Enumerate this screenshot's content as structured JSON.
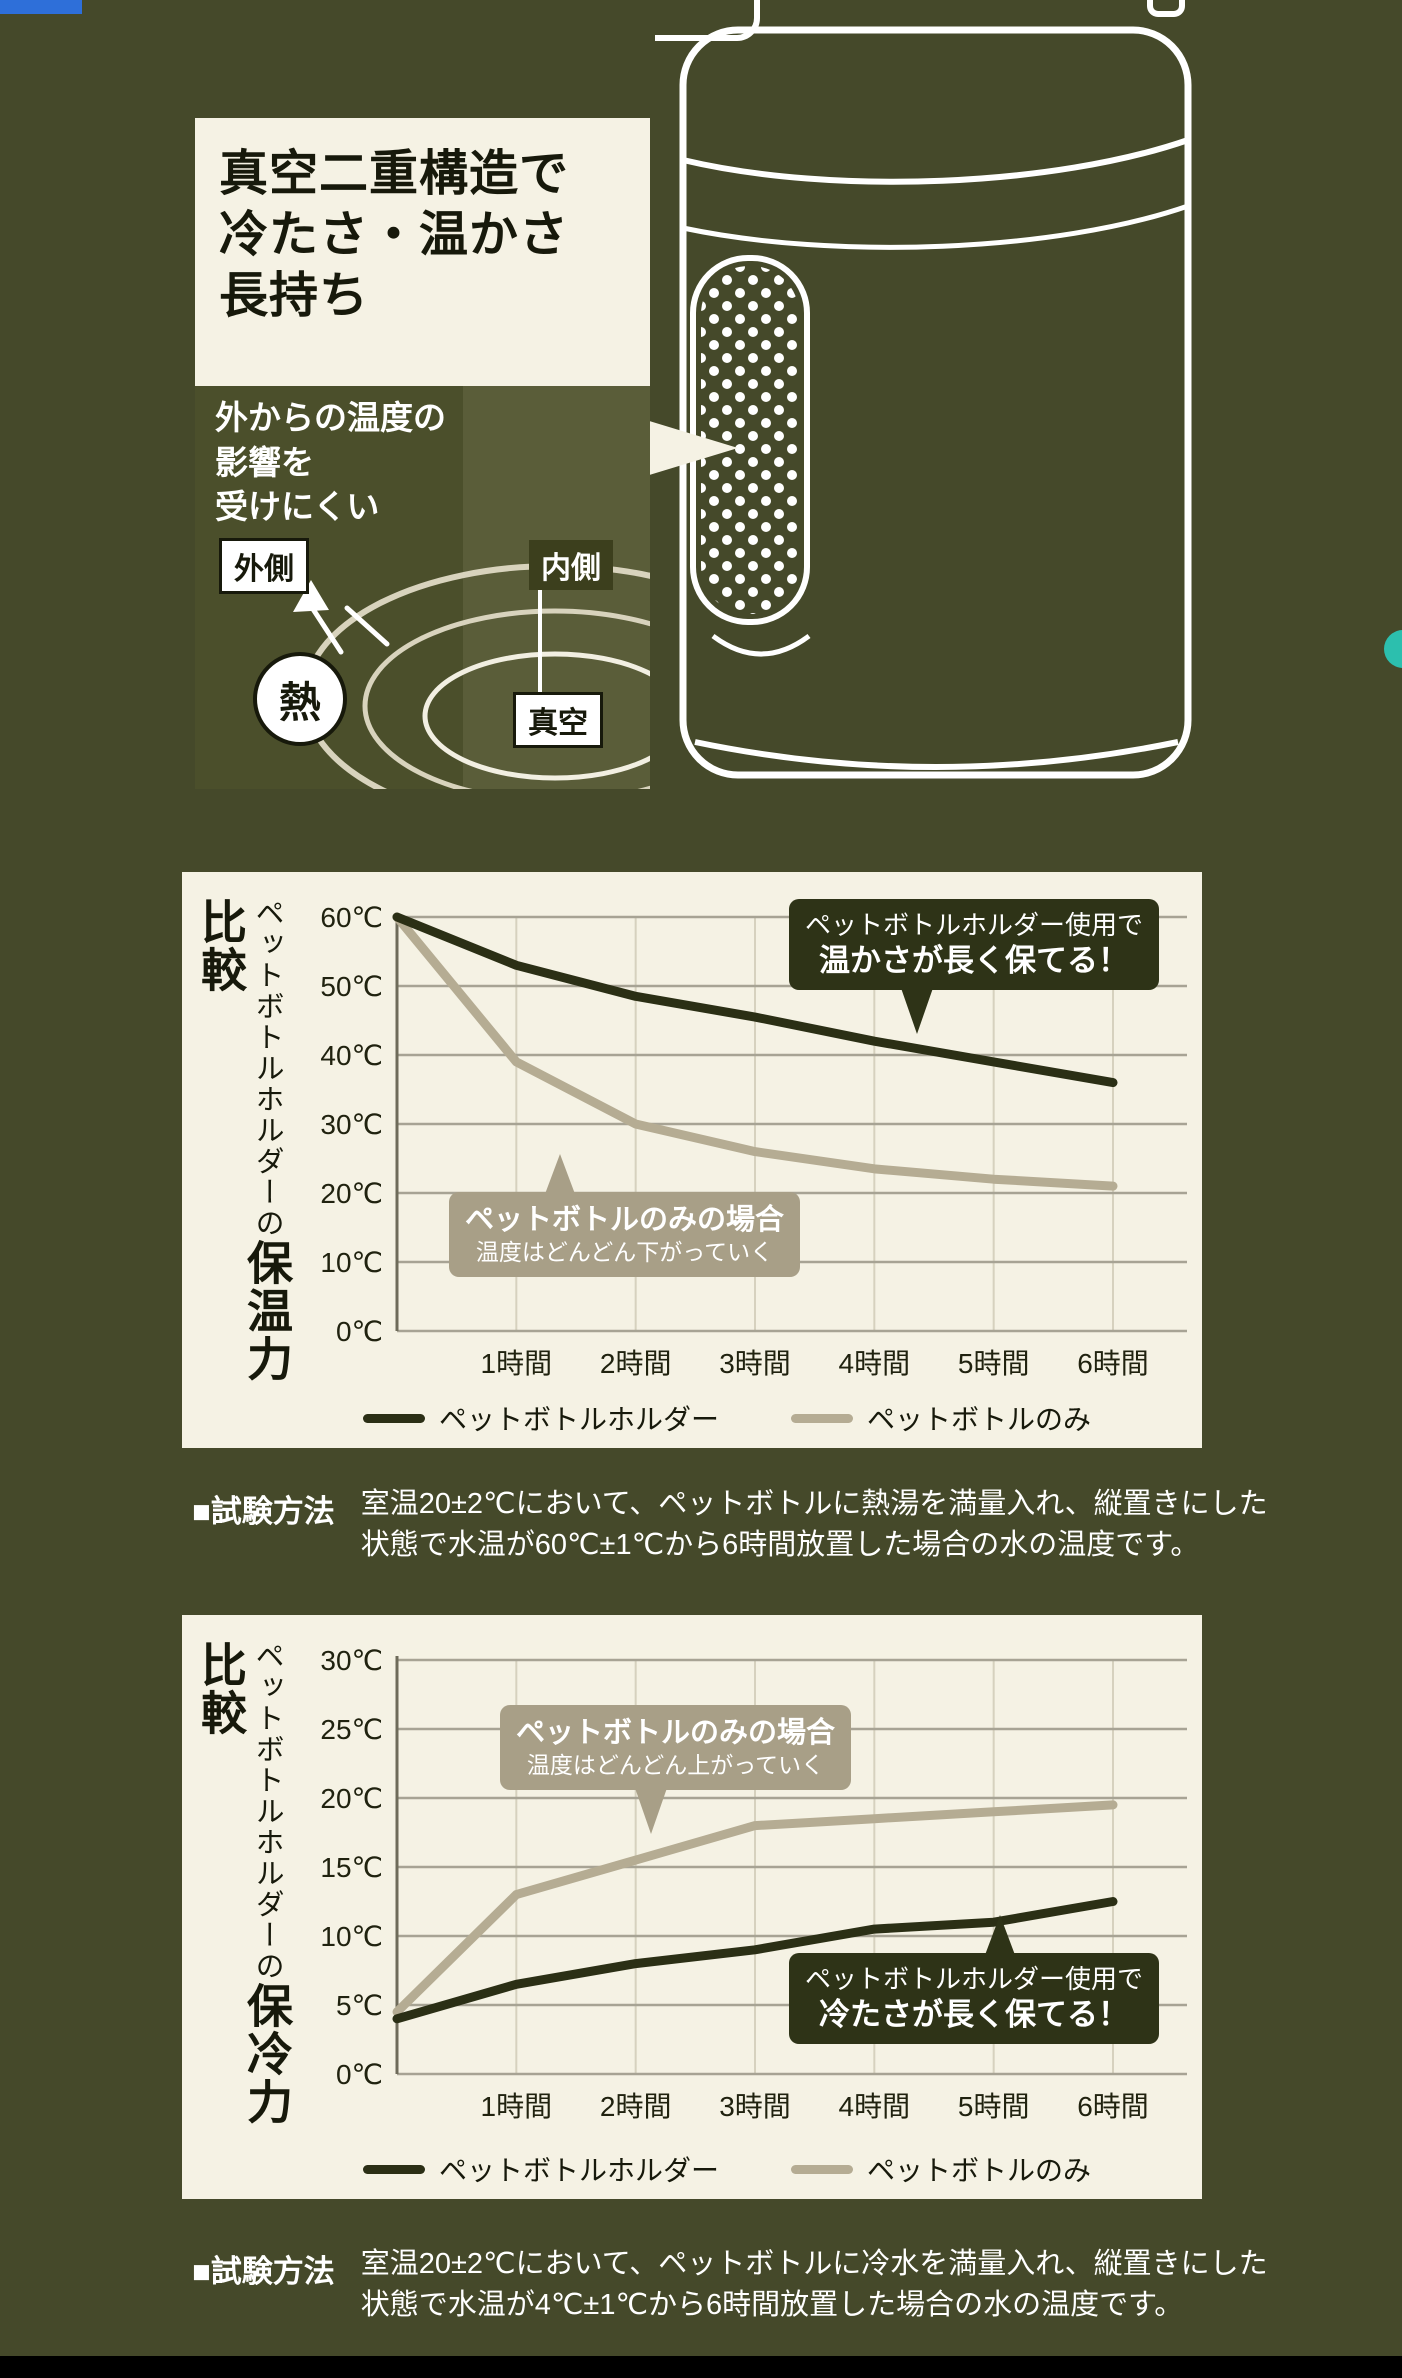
{
  "page": {
    "bg_color": "#45492a",
    "card_bg_color": "#f5f2e4",
    "accents": {
      "top_left_blue": "#2e6fd9",
      "right_teal": "#2cbfae",
      "footer_black": "#000000"
    }
  },
  "hero": {
    "title_lines": [
      "真空二重構造で",
      "冷たさ・温かさ",
      "長持ち"
    ],
    "note_lines": [
      "外からの温度の",
      "影響を",
      "受けにくい"
    ],
    "label_outer": "外側",
    "label_inner": "内側",
    "label_vacuum": "真空",
    "label_heat": "熱"
  },
  "chart_data": [
    {
      "type": "line",
      "title": "ペットボトルホルダーの保温力比較",
      "title_prefix": "ペットボトルホルダーの",
      "title_main": "保温力比較",
      "x": [
        0,
        1,
        2,
        3,
        4,
        5,
        6
      ],
      "xmax": 6,
      "ylim": [
        0,
        60
      ],
      "xticks": [
        {
          "v": 1,
          "label": "1時間"
        },
        {
          "v": 2,
          "label": "2時間"
        },
        {
          "v": 3,
          "label": "3時間"
        },
        {
          "v": 4,
          "label": "4時間"
        },
        {
          "v": 5,
          "label": "5時間"
        },
        {
          "v": 6,
          "label": "6時間"
        }
      ],
      "yticks": [
        {
          "v": 60,
          "label": "60℃"
        },
        {
          "v": 50,
          "label": "50℃"
        },
        {
          "v": 40,
          "label": "40℃"
        },
        {
          "v": 30,
          "label": "30℃"
        },
        {
          "v": 20,
          "label": "20℃"
        },
        {
          "v": 10,
          "label": "10℃"
        },
        {
          "v": 0,
          "label": "0℃"
        }
      ],
      "grid_h_color": "#a7a394",
      "grid_v_color": "#d6d1be",
      "axis_color": "#6e6b5a",
      "series": [
        {
          "name": "ペットボトルホルダー",
          "color": "#2b2f15",
          "values": [
            60,
            53,
            48.5,
            45.5,
            42,
            39,
            36
          ]
        },
        {
          "name": "ペットボトルのみ",
          "color": "#b5ac93",
          "values": [
            60,
            39,
            30,
            26,
            23.5,
            22,
            21
          ]
        }
      ],
      "annotations": [
        {
          "style": "dark",
          "bg": "#2e3317",
          "lines": [
            "ペットボトルホルダー使用で",
            "温かさが長く保てる！"
          ]
        },
        {
          "style": "tan",
          "bg": "#a89f87",
          "lines": [
            "ペットボトルのみの場合",
            "温度はどんどん下がっていく"
          ]
        }
      ]
    },
    {
      "type": "line",
      "title": "ペットボトルホルダーの保冷力比較",
      "title_prefix": "ペットボトルホルダーの",
      "title_main": "保冷力比較",
      "x": [
        0,
        1,
        2,
        3,
        4,
        5,
        6
      ],
      "xmax": 6,
      "ylim": [
        0,
        30
      ],
      "xticks": [
        {
          "v": 1,
          "label": "1時間"
        },
        {
          "v": 2,
          "label": "2時間"
        },
        {
          "v": 3,
          "label": "3時間"
        },
        {
          "v": 4,
          "label": "4時間"
        },
        {
          "v": 5,
          "label": "5時間"
        },
        {
          "v": 6,
          "label": "6時間"
        }
      ],
      "yticks": [
        {
          "v": 30,
          "label": "30℃"
        },
        {
          "v": 25,
          "label": "25℃"
        },
        {
          "v": 20,
          "label": "20℃"
        },
        {
          "v": 15,
          "label": "15℃"
        },
        {
          "v": 10,
          "label": "10℃"
        },
        {
          "v": 5,
          "label": "5℃"
        },
        {
          "v": 0,
          "label": "0℃"
        }
      ],
      "grid_h_color": "#a7a394",
      "grid_v_color": "#d6d1be",
      "axis_color": "#6e6b5a",
      "series": [
        {
          "name": "ペットボトルホルダー",
          "color": "#2b2f15",
          "values": [
            4,
            6.5,
            8,
            9,
            10.5,
            11,
            12.5
          ]
        },
        {
          "name": "ペットボトルのみ",
          "color": "#b5ac93",
          "values": [
            4.5,
            13,
            15.5,
            18,
            18.5,
            19,
            19.5
          ]
        }
      ],
      "annotations": [
        {
          "style": "tan",
          "bg": "#a89f87",
          "lines": [
            "ペットボトルのみの場合",
            "温度はどんどん上がっていく"
          ]
        },
        {
          "style": "dark",
          "bg": "#2e3317",
          "lines": [
            "ペットボトルホルダー使用で",
            "冷たさが長く保てる！"
          ]
        }
      ]
    }
  ],
  "test_methods": [
    {
      "heading": "■試験方法",
      "lines": [
        "室温20±2℃において、ペットボトルに熱湯を満量入れ、縦置きにした",
        "状態で水温が60℃±1℃から6時間放置した場合の水の温度です。"
      ]
    },
    {
      "heading": "■試験方法",
      "lines": [
        "室温20±2℃において、ペットボトルに冷水を満量入れ、縦置きにした",
        "状態で水温が4℃±1℃から6時間放置した場合の水の温度です。"
      ]
    }
  ]
}
